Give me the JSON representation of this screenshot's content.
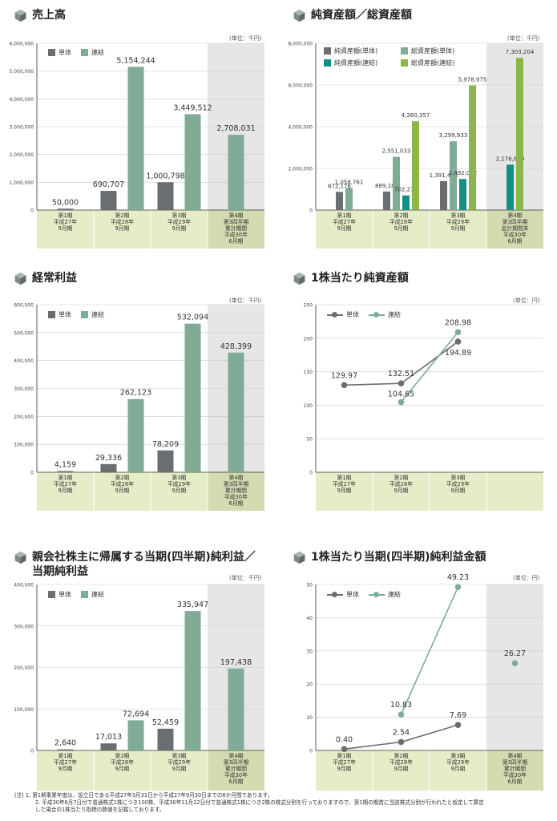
{
  "colors": {
    "tanntai": "#6b6e71",
    "renketsu": "#7fab97",
    "bunny": "#139084",
    "green": "#8ab64a",
    "xbg": "#e5edc8",
    "shade": "#e6e6e6",
    "axis": "#333333",
    "grid": "#c9c9c9"
  },
  "charts": [
    {
      "id": "sales",
      "type": "bar",
      "title": "売上高",
      "unit": "(単位：千円)",
      "legend": [
        {
          "label": "単体",
          "color": "#6b6e71"
        },
        {
          "label": "連結",
          "color": "#7fab97"
        }
      ],
      "yticks": [
        "6,000,000",
        "5,000,000",
        "4,000,000",
        "3,000,000",
        "2,000,000",
        "1,000,000",
        "0"
      ],
      "ymax": 6000000,
      "shade_last": true,
      "categories": [
        [
          "第1期",
          "平成27年",
          "9月期"
        ],
        [
          "第2期",
          "平成28年",
          "9月期"
        ],
        [
          "第3期",
          "平成29年",
          "9月期"
        ],
        [
          "第4期",
          "第3四半期",
          "累計期間",
          "平成30年",
          "6月期"
        ]
      ],
      "series": [
        {
          "name": "単体",
          "color": "#6b6e71",
          "values": [
            50000,
            690707,
            1000798,
            null
          ],
          "labels": [
            "50,000",
            "690,707",
            "1,000,798",
            ""
          ]
        },
        {
          "name": "連結",
          "color": "#7fab97",
          "values": [
            null,
            5154244,
            3449512,
            2708031
          ],
          "labels": [
            "",
            "5,154,244",
            "3,449,512",
            "2,708,031"
          ]
        }
      ]
    },
    {
      "id": "assets",
      "type": "bar",
      "title": "純資産額／総資産額",
      "unit": "(単位：千円)",
      "legend": [
        {
          "label": "純資産額(単体)",
          "color": "#6b6e71"
        },
        {
          "label": "総資産額(単体)",
          "color": "#7fab97"
        },
        {
          "label": "純資産額(連結)",
          "color": "#139084"
        },
        {
          "label": "総資産額(連結)",
          "color": "#8ab64a"
        }
      ],
      "yticks": [
        "8,000,000",
        "6,000,000",
        "4,000,000",
        "2,000,000",
        "0"
      ],
      "ymax": 8000000,
      "shade_last": true,
      "categories": [
        [
          "第1期",
          "平成27年",
          "9月期"
        ],
        [
          "第2期",
          "平成28年",
          "9月期"
        ],
        [
          "第3期",
          "平成29年",
          "9月期"
        ],
        [
          "第4期",
          "第3四半期",
          "会計期間末",
          "平成30年",
          "6月期"
        ]
      ],
      "series": [
        {
          "name": "純資産額(単体)",
          "color": "#6b6e71",
          "values": [
            872176,
            889189,
            1391473,
            null
          ],
          "labels": [
            "872,176",
            "889,189",
            "1,391,473",
            ""
          ]
        },
        {
          "name": "総資産額(単体)",
          "color": "#7fab97",
          "values": [
            1058761,
            2551033,
            3299933,
            null
          ],
          "labels": [
            "1,058,761",
            "2,551,033",
            "3,299,933",
            ""
          ]
        },
        {
          "name": "純資産額(連結)",
          "color": "#139084",
          "values": [
            null,
            702277,
            1492092,
            2176670
          ],
          "labels": [
            "",
            "702,277",
            "1,492,092",
            "2,176,670"
          ]
        },
        {
          "name": "総資産額(連結)",
          "color": "#8ab64a",
          "values": [
            null,
            4260357,
            5978975,
            7303204
          ],
          "labels": [
            "",
            "4,260,357",
            "5,978,975",
            "7,303,204"
          ]
        }
      ]
    },
    {
      "id": "ordinary",
      "type": "bar",
      "title": "経常利益",
      "unit": "(単位：千円)",
      "legend": [
        {
          "label": "単体",
          "color": "#6b6e71"
        },
        {
          "label": "連結",
          "color": "#7fab97"
        }
      ],
      "yticks": [
        "600,000",
        "500,000",
        "400,000",
        "300,000",
        "200,000",
        "100,000",
        "0"
      ],
      "ymax": 600000,
      "shade_last": true,
      "categories": [
        [
          "第1期",
          "平成27年",
          "9月期"
        ],
        [
          "第2期",
          "平成28年",
          "9月期"
        ],
        [
          "第3期",
          "平成29年",
          "9月期"
        ],
        [
          "第4期",
          "第3四半期",
          "累計期間",
          "平成30年",
          "6月期"
        ]
      ],
      "series": [
        {
          "name": "単体",
          "color": "#6b6e71",
          "values": [
            4159,
            29336,
            78209,
            null
          ],
          "labels": [
            "4,159",
            "29,336",
            "78,209",
            ""
          ]
        },
        {
          "name": "連結",
          "color": "#7fab97",
          "values": [
            null,
            262123,
            532094,
            428399
          ],
          "labels": [
            "",
            "262,123",
            "532,094",
            "428,399"
          ]
        }
      ]
    },
    {
      "id": "bps",
      "type": "line",
      "title": "1株当たり純資産額",
      "unit": "(単位：円)",
      "legend": [
        {
          "label": "単体",
          "color": "#6b6e71"
        },
        {
          "label": "連結",
          "color": "#7fab97"
        }
      ],
      "yticks": [
        "250",
        "200",
        "150",
        "100",
        "50",
        "0"
      ],
      "ymax": 250,
      "shade_last": false,
      "categories": [
        [
          "第1期",
          "平成27年",
          "9月期"
        ],
        [
          "第2期",
          "平成28年",
          "9月期"
        ],
        [
          "第3期",
          "平成29年",
          "9月期"
        ]
      ],
      "series": [
        {
          "name": "単体",
          "color": "#6b6e71",
          "values": [
            129.97,
            132.51,
            194.89
          ],
          "labels": [
            "129.97",
            "132.51",
            "194.89"
          ]
        },
        {
          "name": "連結",
          "color": "#7fab97",
          "values": [
            null,
            104.65,
            208.98
          ],
          "labels": [
            "",
            "104.65",
            "208.98"
          ]
        }
      ]
    },
    {
      "id": "netincome",
      "type": "bar",
      "title": "親会社株主に帰属する当期(四半期)純利益／\n当期純利益",
      "unit": "(単位：千円)",
      "legend": [
        {
          "label": "単体",
          "color": "#6b6e71"
        },
        {
          "label": "連結",
          "color": "#7fab97"
        }
      ],
      "yticks": [
        "400,000",
        "300,000",
        "200,000",
        "100,000",
        "0"
      ],
      "ymax": 400000,
      "shade_last": true,
      "categories": [
        [
          "第1期",
          "平成27年",
          "9月期"
        ],
        [
          "第2期",
          "平成28年",
          "9月期"
        ],
        [
          "第3期",
          "平成29年",
          "9月期"
        ],
        [
          "第4期",
          "第3四半期",
          "累計期間",
          "平成30年",
          "6月期"
        ]
      ],
      "series": [
        {
          "name": "単体",
          "color": "#6b6e71",
          "values": [
            2640,
            17013,
            52459,
            null
          ],
          "labels": [
            "2,640",
            "17,013",
            "52,459",
            ""
          ]
        },
        {
          "name": "連結",
          "color": "#7fab97",
          "values": [
            null,
            72694,
            335947,
            197438
          ],
          "labels": [
            "",
            "72,694",
            "335,947",
            "197,438"
          ]
        }
      ]
    },
    {
      "id": "eps",
      "type": "line",
      "title": "1株当たり当期(四半期)純利益金額",
      "unit": "(単位：円)",
      "legend": [
        {
          "label": "単体",
          "color": "#6b6e71"
        },
        {
          "label": "連結",
          "color": "#7fab97"
        }
      ],
      "yticks": [
        "50",
        "40",
        "30",
        "20",
        "10",
        "0"
      ],
      "ymax": 50,
      "shade_last": true,
      "categories": [
        [
          "第1期",
          "平成27年",
          "9月期"
        ],
        [
          "第2期",
          "平成28年",
          "9月期"
        ],
        [
          "第3期",
          "平成29年",
          "9月期"
        ],
        [
          "第4期",
          "第3四半期",
          "累計期間",
          "平成30年",
          "6月期"
        ]
      ],
      "series": [
        {
          "name": "単体",
          "color": "#6b6e71",
          "values": [
            0.4,
            2.54,
            7.69,
            null
          ],
          "labels": [
            "0.40",
            "2.54",
            "7.69",
            ""
          ]
        },
        {
          "name": "連結",
          "color": "#7fab97",
          "values": [
            null,
            10.83,
            49.23,
            26.27
          ],
          "labels": [
            "",
            "10.83",
            "49.23",
            "26.27"
          ],
          "break_before_last": true
        }
      ]
    }
  ],
  "chart_data": [
    {
      "type": "bar",
      "title": "売上高",
      "categories": [
        "第1期 平成27年9月期",
        "第2期 平成28年9月期",
        "第3期 平成29年9月期",
        "第4期 第3四半期累計期間 平成30年6月期"
      ],
      "series": [
        {
          "name": "単体",
          "values": [
            50000,
            690707,
            1000798,
            null
          ]
        },
        {
          "name": "連結",
          "values": [
            null,
            5154244,
            3449512,
            2708031
          ]
        }
      ],
      "ylim": [
        0,
        6000000
      ]
    },
    {
      "type": "bar",
      "title": "純資産額／総資産額",
      "categories": [
        "第1期 平成27年9月期",
        "第2期 平成28年9月期",
        "第3期 平成29年9月期",
        "第4期 第3四半期会計期間末 平成30年6月期"
      ],
      "series": [
        {
          "name": "純資産額(単体)",
          "values": [
            872176,
            889189,
            1391473,
            null
          ]
        },
        {
          "name": "総資産額(単体)",
          "values": [
            1058761,
            2551033,
            3299933,
            null
          ]
        },
        {
          "name": "純資産額(連結)",
          "values": [
            null,
            702277,
            1492092,
            2176670
          ]
        },
        {
          "name": "総資産額(連結)",
          "values": [
            null,
            4260357,
            5978975,
            7303204
          ]
        }
      ],
      "ylim": [
        0,
        8000000
      ]
    },
    {
      "type": "bar",
      "title": "経常利益",
      "categories": [
        "第1期 平成27年9月期",
        "第2期 平成28年9月期",
        "第3期 平成29年9月期",
        "第4期 第3四半期累計期間 平成30年6月期"
      ],
      "series": [
        {
          "name": "単体",
          "values": [
            4159,
            29336,
            78209,
            null
          ]
        },
        {
          "name": "連結",
          "values": [
            null,
            262123,
            532094,
            428399
          ]
        }
      ],
      "ylim": [
        0,
        600000
      ]
    },
    {
      "type": "line",
      "title": "1株当たり純資産額",
      "categories": [
        "第1期 平成27年9月期",
        "第2期 平成28年9月期",
        "第3期 平成29年9月期"
      ],
      "series": [
        {
          "name": "単体",
          "values": [
            129.97,
            132.51,
            194.89
          ]
        },
        {
          "name": "連結",
          "values": [
            null,
            104.65,
            208.98
          ]
        }
      ],
      "ylim": [
        0,
        250
      ]
    },
    {
      "type": "bar",
      "title": "親会社株主に帰属する当期(四半期)純利益／当期純利益",
      "categories": [
        "第1期 平成27年9月期",
        "第2期 平成28年9月期",
        "第3期 平成29年9月期",
        "第4期 第3四半期累計期間 平成30年6月期"
      ],
      "series": [
        {
          "name": "単体",
          "values": [
            2640,
            17013,
            52459,
            null
          ]
        },
        {
          "name": "連結",
          "values": [
            null,
            72694,
            335947,
            197438
          ]
        }
      ],
      "ylim": [
        0,
        400000
      ]
    },
    {
      "type": "line",
      "title": "1株当たり当期(四半期)純利益金額",
      "categories": [
        "第1期 平成27年9月期",
        "第2期 平成28年9月期",
        "第3期 平成29年9月期",
        "第4期 第3四半期累計期間 平成30年6月期"
      ],
      "series": [
        {
          "name": "単体",
          "values": [
            0.4,
            2.54,
            7.69,
            null
          ]
        },
        {
          "name": "連結",
          "values": [
            null,
            10.83,
            49.23,
            26.27
          ]
        }
      ],
      "ylim": [
        0,
        50
      ]
    }
  ],
  "notes": {
    "line1": "(注) 1. 第1期事業年度は、設立日である平成27年3月31日から平成27年9月30日までの6か月間であります。",
    "line2": "2. 平成30年6月7日付で普通株式1株につき100株、平成30年11月12日付で普通株式1株につき2株の株式分割を行っておりますので、第1期の期首に当該株式分割が行われたと仮定して算定",
    "line3": "した場合の1株当たり指標の数値を記載しております。"
  }
}
